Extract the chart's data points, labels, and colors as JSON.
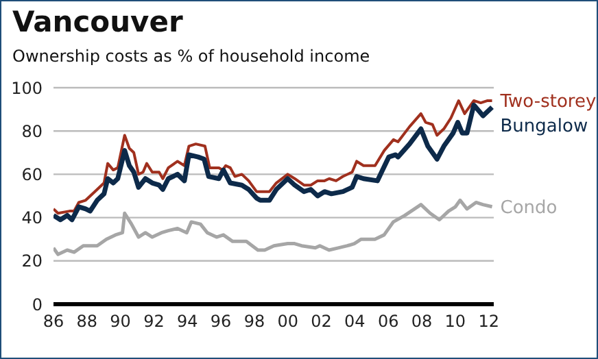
{
  "chart_data": {
    "type": "line",
    "title": "Vancouver",
    "subtitle": "Ownership costs as % of household income",
    "xlim": [
      1986,
      2012.3
    ],
    "xticks": [
      {
        "value": 1986,
        "label": "86"
      },
      {
        "value": 1988,
        "label": "88"
      },
      {
        "value": 1990,
        "label": "90"
      },
      {
        "value": 1992,
        "label": "92"
      },
      {
        "value": 1994,
        "label": "94"
      },
      {
        "value": 1996,
        "label": "96"
      },
      {
        "value": 1998,
        "label": "98"
      },
      {
        "value": 2000,
        "label": "00"
      },
      {
        "value": 2002,
        "label": "02"
      },
      {
        "value": 2004,
        "label": "04"
      },
      {
        "value": 2006,
        "label": "06"
      },
      {
        "value": 2008,
        "label": "08"
      },
      {
        "value": 2010,
        "label": "10"
      },
      {
        "value": 2012,
        "label": "12"
      }
    ],
    "ylim": [
      0,
      100
    ],
    "yticks": [
      0,
      20,
      40,
      60,
      80,
      100
    ],
    "grid": "y",
    "series": [
      {
        "name": "Two-storey",
        "color": "#a0301e",
        "x": [
          1986.0,
          1986.27,
          1986.96,
          1987.23,
          1987.51,
          1987.92,
          1988.47,
          1989.02,
          1989.24,
          1989.57,
          1989.84,
          1990.25,
          1990.53,
          1990.8,
          1991.08,
          1991.35,
          1991.57,
          1991.9,
          1992.31,
          1992.53,
          1992.86,
          1993.41,
          1993.82,
          1994.09,
          1994.5,
          1995.05,
          1995.33,
          1995.88,
          1996.1,
          1996.29,
          1996.56,
          1996.84,
          1997.25,
          1997.66,
          1998.13,
          1998.35,
          1998.9,
          1999.31,
          1999.99,
          2000.41,
          2000.96,
          2001.37,
          2001.78,
          2002.19,
          2002.47,
          2002.88,
          2003.29,
          2003.84,
          2004.11,
          2004.52,
          2005.21,
          2005.76,
          2006.31,
          2006.58,
          2007.27,
          2007.95,
          2008.23,
          2008.64,
          2008.91,
          2009.32,
          2009.74,
          2010.2,
          2010.56,
          2011.11,
          2011.52,
          2011.93,
          2012.2
        ],
        "values": [
          44,
          42,
          43,
          43,
          47,
          48,
          52,
          56,
          65,
          62,
          63,
          78,
          72,
          70,
          60,
          61,
          65,
          61,
          61,
          58,
          63,
          66,
          64,
          73,
          74,
          73,
          63,
          63,
          62,
          64,
          63,
          59,
          60,
          57,
          52,
          52,
          52,
          56,
          60,
          58,
          55,
          55,
          57,
          57,
          58,
          57,
          59,
          61,
          66,
          64,
          64,
          71,
          76,
          75,
          82,
          88,
          84,
          83,
          78,
          81,
          86,
          94,
          88,
          94,
          93,
          94,
          94
        ]
      },
      {
        "name": "Bungalow",
        "color": "#0d2a4a",
        "x": [
          1986.0,
          1986.41,
          1986.82,
          1987.1,
          1987.51,
          1987.92,
          1988.19,
          1988.61,
          1989.02,
          1989.24,
          1989.57,
          1989.84,
          1990.25,
          1990.53,
          1990.8,
          1991.08,
          1991.49,
          1991.9,
          1992.31,
          1992.53,
          1992.86,
          1993.41,
          1993.82,
          1994.09,
          1994.64,
          1995.0,
          1995.27,
          1995.88,
          1996.15,
          1996.56,
          1997.25,
          1997.66,
          1998.13,
          1998.35,
          1998.9,
          1999.31,
          1999.99,
          2000.41,
          2000.96,
          2001.37,
          2001.78,
          2002.19,
          2002.6,
          2003.29,
          2003.84,
          2004.11,
          2004.52,
          2005.35,
          2006.03,
          2006.44,
          2006.58,
          2007.27,
          2007.95,
          2008.36,
          2008.91,
          2009.32,
          2009.87,
          2010.15,
          2010.42,
          2010.7,
          2011.11,
          2011.66,
          2012.2
        ],
        "values": [
          41,
          39,
          41,
          39,
          45,
          44,
          43,
          48,
          51,
          58,
          56,
          58,
          71,
          64,
          61,
          54,
          58,
          56,
          55,
          53,
          58,
          60,
          57,
          69,
          68,
          67,
          59,
          58,
          62,
          56,
          55,
          53,
          49,
          48,
          48,
          53,
          58,
          55,
          52,
          53,
          50,
          52,
          51,
          52,
          54,
          59,
          58,
          57,
          68,
          69,
          68,
          74,
          81,
          73,
          67,
          73,
          79,
          84,
          79,
          79,
          92,
          87,
          91
        ]
      },
      {
        "name": "Condo",
        "color": "#a6a6a6",
        "x": [
          1986.0,
          1986.27,
          1986.82,
          1987.23,
          1987.78,
          1988.19,
          1988.61,
          1989.16,
          1989.7,
          1990.12,
          1990.25,
          1990.66,
          1991.08,
          1991.49,
          1991.9,
          1992.45,
          1992.86,
          1993.41,
          1993.96,
          1994.23,
          1994.78,
          1995.19,
          1995.74,
          1996.15,
          1996.7,
          1997.52,
          1998.21,
          1998.62,
          1999.17,
          1999.99,
          2000.4,
          2000.82,
          2001.64,
          2001.91,
          2002.46,
          2003.01,
          2003.56,
          2003.97,
          2004.38,
          2005.2,
          2005.75,
          2006.3,
          2006.99,
          2007.95,
          2008.5,
          2009.05,
          2009.6,
          2010.01,
          2010.29,
          2010.7,
          2011.24,
          2011.65,
          2012.2
        ],
        "values": [
          26,
          23,
          25,
          24,
          27,
          27,
          27,
          30,
          32,
          33,
          42,
          37,
          31,
          33,
          31,
          33,
          34,
          35,
          33,
          38,
          37,
          33,
          31,
          32,
          29,
          29,
          25,
          25,
          27,
          28,
          28,
          27,
          26,
          27,
          25,
          26,
          27,
          28,
          30,
          30,
          32,
          38,
          41,
          46,
          42,
          39,
          43,
          45,
          48,
          44,
          47,
          46,
          45
        ]
      }
    ]
  }
}
